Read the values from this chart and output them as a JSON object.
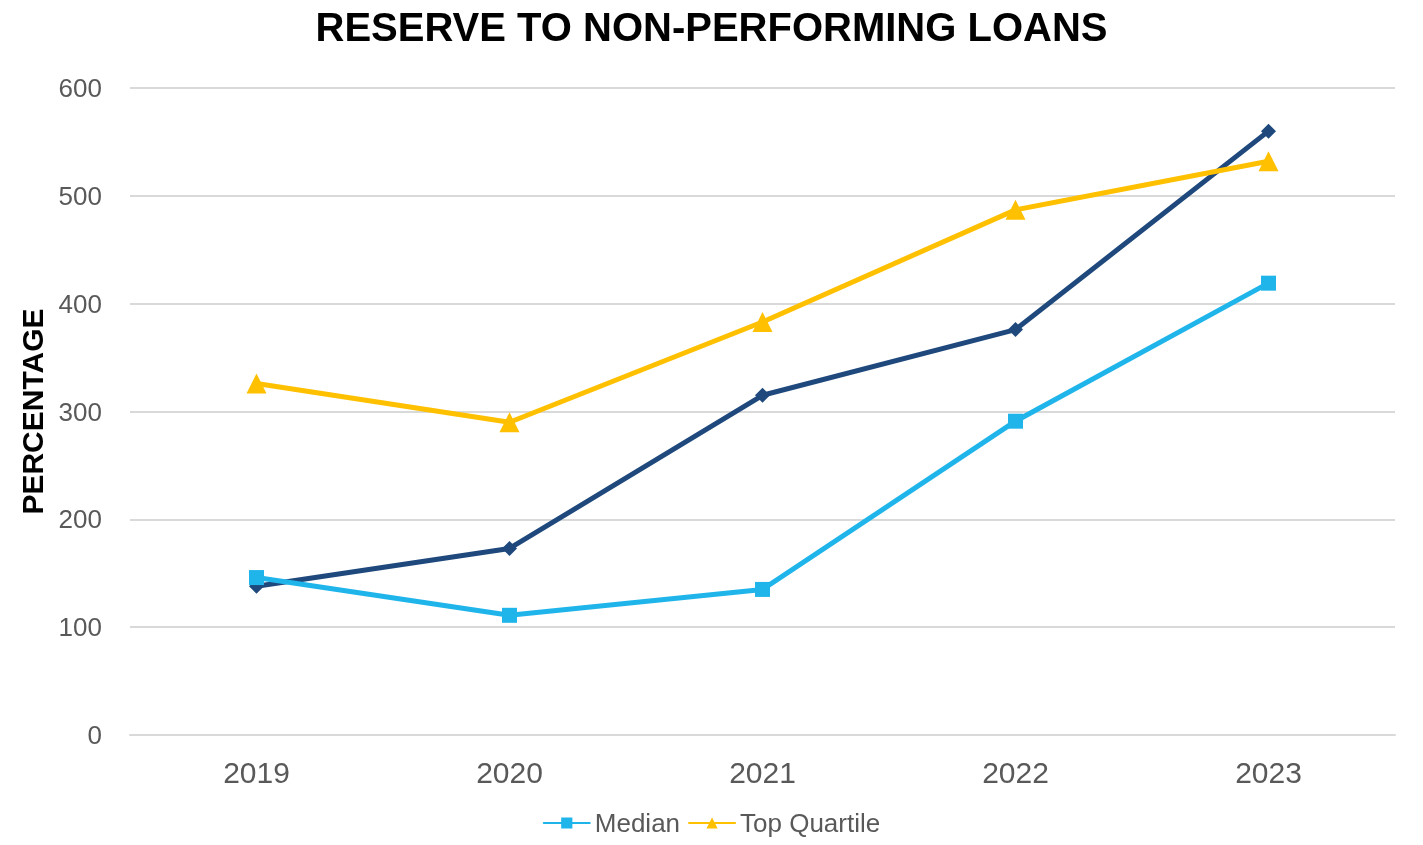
{
  "chart_data": {
    "type": "line",
    "title": "RESERVE TO NON-PERFORMING LOANS",
    "ylabel": "PERCENTAGE",
    "categories": [
      "2019",
      "2020",
      "2021",
      "2022",
      "2023"
    ],
    "series": [
      {
        "color": "#1f497d",
        "marker": "diamond",
        "values": [
          138,
          173,
          315,
          376,
          560
        ]
      },
      {
        "name": "Median",
        "color": "#1fb5ea",
        "marker": "square",
        "values": [
          146,
          111,
          135,
          291,
          419
        ]
      },
      {
        "name": "Top Quartile",
        "color": "#ffc000",
        "marker": "triangle",
        "values": [
          326,
          290,
          383,
          487,
          532
        ]
      }
    ],
    "ylim": [
      0,
      600
    ],
    "yticks": [
      0,
      100,
      200,
      300,
      400,
      500,
      600
    ],
    "grid": "y",
    "legend": "bottom",
    "line_style": "solid"
  }
}
